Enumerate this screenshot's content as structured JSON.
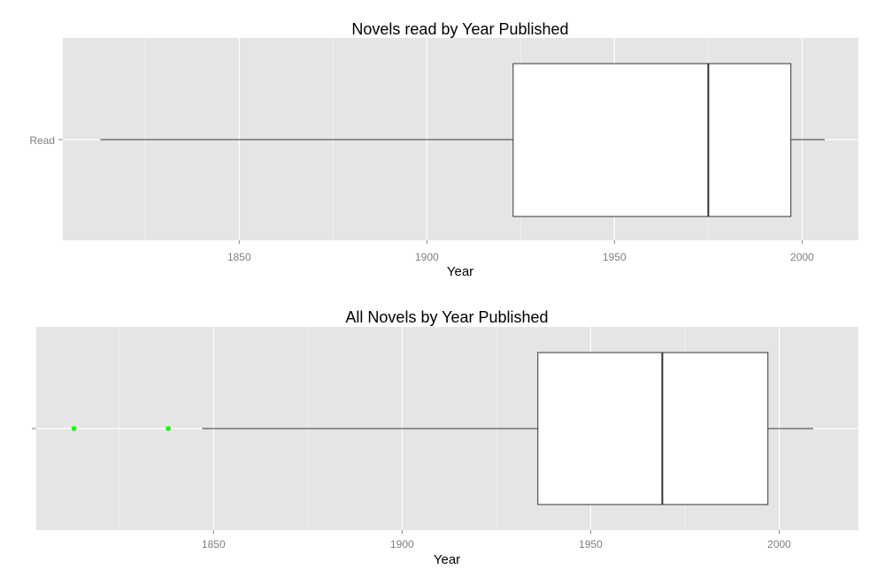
{
  "chart_data": [
    {
      "type": "boxplot",
      "orientation": "horizontal",
      "title": "Novels read by Year Published",
      "xlabel": "Year",
      "ylabel": "",
      "xlim": [
        1803,
        2015
      ],
      "x_ticks": [
        1850,
        1900,
        1950,
        2000
      ],
      "x_tick_labels": [
        "1850",
        "1900",
        "1950",
        "2000"
      ],
      "category_labels": [
        "Read"
      ],
      "grid": true,
      "box": {
        "whisker_low": 1813,
        "q1": 1923,
        "median": 1975,
        "q3": 1997,
        "whisker_high": 2006
      },
      "outliers": [],
      "outlier_color": "#00ff00",
      "panel_color": "#e5e5e5",
      "grid_color": "#ffffff"
    },
    {
      "type": "boxplot",
      "orientation": "horizontal",
      "title": "All Novels by Year Published",
      "xlabel": "Year",
      "ylabel": "",
      "xlim": [
        1803,
        2021
      ],
      "x_ticks": [
        1850,
        1900,
        1950,
        2000
      ],
      "x_tick_labels": [
        "1850",
        "1900",
        "1950",
        "2000"
      ],
      "category_labels": [
        ""
      ],
      "grid": true,
      "box": {
        "whisker_low": 1847,
        "q1": 1936,
        "median": 1969,
        "q3": 1997,
        "whisker_high": 2009
      },
      "outliers": [
        1813,
        1838
      ],
      "outlier_color": "#00ff00",
      "panel_color": "#e5e5e5",
      "grid_color": "#ffffff"
    }
  ]
}
